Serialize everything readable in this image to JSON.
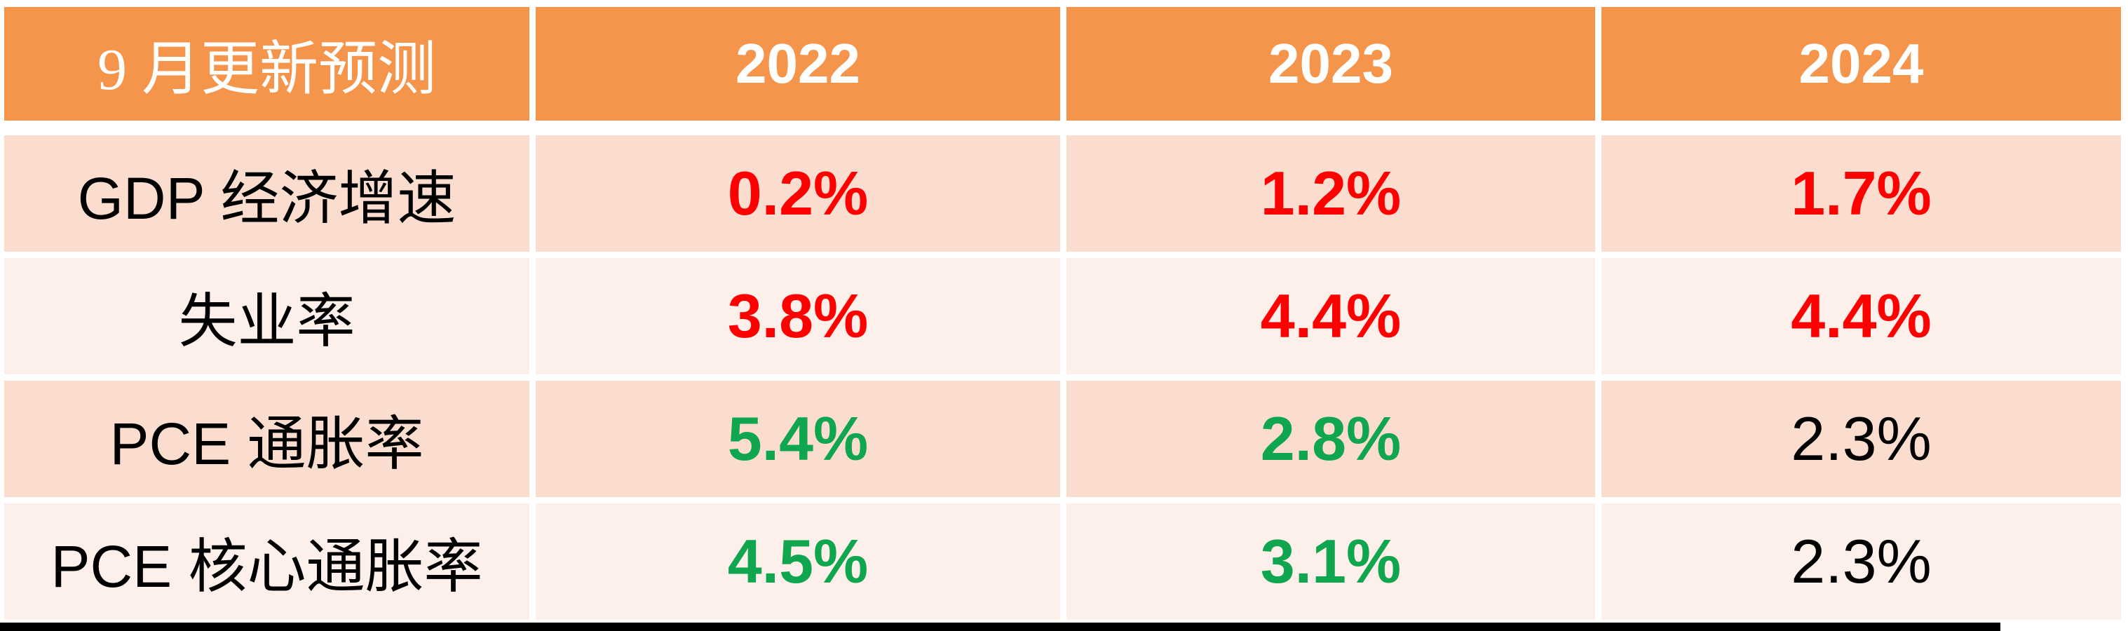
{
  "chart_data": {
    "type": "table",
    "title": "9 月更新预测",
    "columns": [
      "9 月更新预测",
      "2022",
      "2023",
      "2024"
    ],
    "rows": [
      {
        "label": "GDP 经济增速",
        "values": [
          "0.2%",
          "1.2%",
          "1.7%"
        ],
        "value_colors": [
          "red",
          "red",
          "red"
        ]
      },
      {
        "label": "失业率",
        "values": [
          "3.8%",
          "4.4%",
          "4.4%"
        ],
        "value_colors": [
          "red",
          "red",
          "red"
        ]
      },
      {
        "label": "PCE 通胀率",
        "values": [
          "5.4%",
          "2.8%",
          "2.3%"
        ],
        "value_colors": [
          "green",
          "green",
          "black"
        ]
      },
      {
        "label": "PCE 核心通胀率",
        "values": [
          "4.5%",
          "3.1%",
          "2.3%"
        ],
        "value_colors": [
          "green",
          "green",
          "black"
        ]
      }
    ],
    "palette": {
      "header_bg": "#F5954C",
      "header_text": "#FFFFFF",
      "band_dark_bg": "#FBDDCF",
      "band_light_bg": "#FDEFE9",
      "value_red": "#FF0000",
      "value_green": "#0FA64F",
      "value_black": "#000000",
      "gutter": "#FFFFFF",
      "bottom_bar": "#000000"
    }
  }
}
